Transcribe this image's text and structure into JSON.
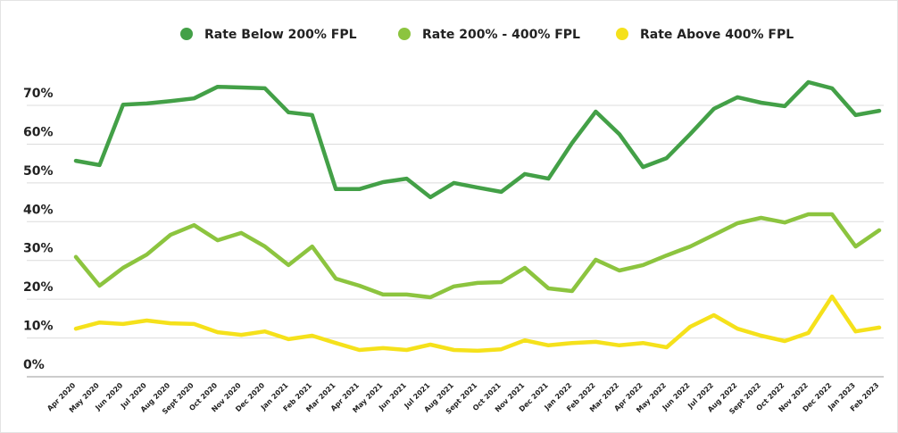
{
  "chart_data": {
    "type": "line",
    "categories": [
      "Apr 2020",
      "May 2020",
      "Jun 2020",
      "Jul 2020",
      "Aug 2020",
      "Sept 2020",
      "Oct 2020",
      "Nov 2020",
      "Dec 2020",
      "Jan 2021",
      "Feb 2021",
      "Mar 2021",
      "Apr 2021",
      "May 2021",
      "Jun 2021",
      "Jul 2021",
      "Aug 2021",
      "Sept 2021",
      "Oct 2021",
      "Nov 2021",
      "Dec 2021",
      "Jan 2022",
      "Feb 2022",
      "Mar 2022",
      "Apr 2022",
      "May 2022",
      "Jun 2022",
      "Jul 2022",
      "Aug 2022",
      "Sept 2022",
      "Oct 2022",
      "Nov 2022",
      "Dec 2022",
      "Jan 2023",
      "Feb 2023"
    ],
    "series": [
      {
        "name": "Rate Below 200% FPL",
        "color": "#43a047",
        "values": [
          55.7,
          54.6,
          70.2,
          70.5,
          71.1,
          71.8,
          74.8,
          74.6,
          74.4,
          68.2,
          67.5,
          48.4,
          48.4,
          50.2,
          51.1,
          46.3,
          50.0,
          48.8,
          47.7,
          52.3,
          51.1,
          60.3,
          68.4,
          62.6,
          54.1,
          56.4,
          62.6,
          69.1,
          72.1,
          70.7,
          69.8,
          76.0,
          74.4,
          67.5,
          68.6
        ]
      },
      {
        "name": "Rate 200% - 400% FPL",
        "color": "#8cc43f",
        "values": [
          30.9,
          23.5,
          28.1,
          31.5,
          36.6,
          39.1,
          35.2,
          37.1,
          33.6,
          28.8,
          33.6,
          25.3,
          23.5,
          21.2,
          21.2,
          20.5,
          23.3,
          24.2,
          24.4,
          28.1,
          22.8,
          22.1,
          30.2,
          27.4,
          28.8,
          31.3,
          33.6,
          36.6,
          39.6,
          41.0,
          39.8,
          41.9,
          41.9,
          33.6,
          37.8
        ]
      },
      {
        "name": "Rate Above 400% FPL",
        "color": "#f5e11b",
        "values": [
          12.4,
          14.0,
          13.6,
          14.5,
          13.8,
          13.6,
          11.5,
          10.8,
          11.7,
          9.7,
          10.6,
          8.7,
          6.9,
          7.4,
          6.9,
          8.3,
          6.9,
          6.7,
          7.1,
          9.4,
          8.1,
          8.7,
          9.0,
          8.1,
          8.7,
          7.6,
          12.9,
          15.9,
          12.4,
          10.6,
          9.2,
          11.3,
          20.7,
          11.7,
          12.7
        ]
      }
    ],
    "ylim": [
      0,
      80
    ],
    "yticks": [
      {
        "value": 0,
        "label": "0%"
      },
      {
        "value": 10,
        "label": "10%"
      },
      {
        "value": 20,
        "label": "20%"
      },
      {
        "value": 30,
        "label": "30%"
      },
      {
        "value": 40,
        "label": "40%"
      },
      {
        "value": 50,
        "label": "50%"
      },
      {
        "value": 60,
        "label": "60%"
      },
      {
        "value": 70,
        "label": "70%"
      }
    ],
    "grid": true
  }
}
